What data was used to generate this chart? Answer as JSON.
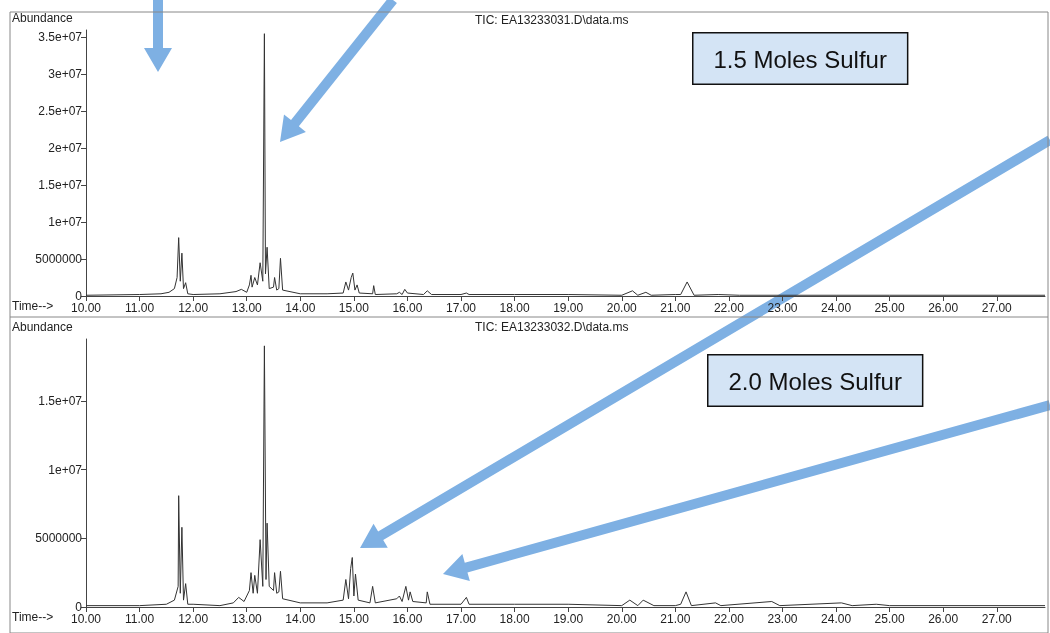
{
  "chart_data": [
    {
      "type": "line",
      "title": "TIC: EA13233031.D\\data.ms",
      "xlabel": "Time-->",
      "ylabel": "Abundance",
      "annotations": [
        "1.5 Moles Sulfur"
      ],
      "marker": "none",
      "line_style": "solid",
      "x": [
        10.0,
        11.0,
        11.4,
        11.55,
        11.65,
        11.7,
        11.73,
        11.76,
        11.79,
        11.82,
        11.86,
        11.9,
        12.0,
        12.5,
        12.8,
        12.9,
        13.0,
        13.05,
        13.08,
        13.1,
        13.15,
        13.2,
        13.25,
        13.3,
        13.33,
        13.35,
        13.38,
        13.42,
        13.5,
        13.52,
        13.56,
        13.6,
        13.63,
        13.67,
        14.0,
        14.5,
        14.8,
        14.85,
        14.9,
        14.95,
        14.98,
        15.02,
        15.06,
        15.1,
        15.35,
        15.37,
        15.4,
        15.8,
        15.85,
        15.9,
        15.95,
        16.0,
        16.3,
        16.37,
        16.45,
        17.0,
        17.1,
        17.15,
        18.0,
        19.0,
        20.0,
        20.2,
        20.3,
        20.45,
        20.55,
        21.0,
        21.1,
        21.22,
        21.35,
        21.8,
        22.2,
        24.0,
        25.0,
        27.9
      ],
      "series": [
        {
          "color": "#333333",
          "values": [
            100000,
            200000,
            300000,
            500000,
            1000000,
            2500000,
            7900000,
            2000000,
            5800000,
            1000000,
            1800000,
            300000,
            200000,
            300000,
            600000,
            900000,
            500000,
            1500000,
            2800000,
            1200000,
            2500000,
            1500000,
            4500000,
            2000000,
            35500000,
            3000000,
            6600000,
            1000000,
            1200000,
            2500000,
            800000,
            1000000,
            5100000,
            800000,
            300000,
            300000,
            400000,
            1900000,
            800000,
            2500000,
            3100000,
            800000,
            1500000,
            400000,
            300000,
            1400000,
            200000,
            300000,
            500000,
            200000,
            900000,
            400000,
            200000,
            700000,
            200000,
            200000,
            400000,
            200000,
            200000,
            200000,
            100000,
            700000,
            100000,
            500000,
            100000,
            200000,
            200000,
            1900000,
            100000,
            200000,
            100000,
            100000,
            100000,
            100000
          ]
        }
      ],
      "xlim": [
        10,
        27.9
      ],
      "xticks": [
        {
          "value": 10,
          "label": "10.00"
        },
        {
          "value": 11,
          "label": "11.00"
        },
        {
          "value": 12,
          "label": "12.00"
        },
        {
          "value": 13,
          "label": "13.00"
        },
        {
          "value": 14,
          "label": "14.00"
        },
        {
          "value": 15,
          "label": "15.00"
        },
        {
          "value": 16,
          "label": "16.00"
        },
        {
          "value": 17,
          "label": "17.00"
        },
        {
          "value": 18,
          "label": "18.00"
        },
        {
          "value": 19,
          "label": "19.00"
        },
        {
          "value": 20,
          "label": "20.00"
        },
        {
          "value": 21,
          "label": "21.00"
        },
        {
          "value": 22,
          "label": "22.00"
        },
        {
          "value": 23,
          "label": "23.00"
        },
        {
          "value": 24,
          "label": "24.00"
        },
        {
          "value": 25,
          "label": "25.00"
        },
        {
          "value": 26,
          "label": "26.00"
        },
        {
          "value": 27,
          "label": "27.00"
        }
      ],
      "ylim": [
        0,
        36000000
      ],
      "yticks": [
        {
          "value": 0,
          "label": "0"
        },
        {
          "value": 5000000,
          "label": "5000000"
        },
        {
          "value": 10000000,
          "label": "1e+07"
        },
        {
          "value": 15000000,
          "label": "1.5e+07"
        },
        {
          "value": 20000000,
          "label": "2e+07"
        },
        {
          "value": 25000000,
          "label": "2.5e+07"
        },
        {
          "value": 30000000,
          "label": "3e+07"
        },
        {
          "value": 35000000,
          "label": "3.5e+07"
        }
      ]
    },
    {
      "type": "line",
      "title": "TIC: EA13233032.D\\data.ms",
      "xlabel": "Time-->",
      "ylabel": "Abundance",
      "annotations": [
        "2.0 Moles Sulfur"
      ],
      "marker": "none",
      "line_style": "solid",
      "x": [
        10.0,
        11.0,
        11.5,
        11.65,
        11.72,
        11.73,
        11.76,
        11.79,
        11.82,
        11.86,
        11.9,
        12.0,
        12.5,
        12.75,
        12.85,
        12.95,
        13.05,
        13.08,
        13.12,
        13.15,
        13.2,
        13.25,
        13.3,
        13.33,
        13.36,
        13.38,
        13.42,
        13.5,
        13.52,
        13.56,
        13.6,
        13.63,
        13.67,
        14.0,
        14.5,
        14.8,
        14.85,
        14.9,
        14.94,
        14.97,
        15.0,
        15.03,
        15.08,
        15.3,
        15.35,
        15.4,
        15.8,
        15.85,
        15.9,
        15.97,
        16.02,
        16.05,
        16.1,
        16.35,
        16.37,
        16.42,
        17.0,
        17.1,
        17.15,
        18.0,
        19.0,
        20.0,
        20.15,
        20.3,
        20.4,
        20.6,
        21.0,
        21.1,
        21.2,
        21.3,
        21.75,
        21.85,
        22.8,
        22.95,
        24.1,
        24.3,
        24.75,
        25.0,
        27.9
      ],
      "series": [
        {
          "color": "#333333",
          "values": [
            100000,
            100000,
            200000,
            500000,
            1500000,
            8100000,
            1000000,
            5800000,
            500000,
            1700000,
            200000,
            200000,
            100000,
            300000,
            700000,
            400000,
            1200000,
            2500000,
            1000000,
            2300000,
            1000000,
            4900000,
            1500000,
            19000000,
            2000000,
            6100000,
            1500000,
            1200000,
            2500000,
            1000000,
            1100000,
            2600000,
            600000,
            300000,
            300000,
            500000,
            2000000,
            600000,
            2800000,
            3600000,
            800000,
            2400000,
            500000,
            300000,
            1500000,
            300000,
            600000,
            800000,
            400000,
            1500000,
            500000,
            1100000,
            400000,
            300000,
            1100000,
            200000,
            200000,
            700000,
            200000,
            200000,
            200000,
            100000,
            500000,
            100000,
            500000,
            100000,
            100000,
            200000,
            1100000,
            100000,
            300000,
            100000,
            400000,
            100000,
            300000,
            100000,
            200000,
            100000,
            100000
          ]
        }
      ],
      "xlim": [
        10,
        27.9
      ],
      "xticks": [
        {
          "value": 10,
          "label": "10.00"
        },
        {
          "value": 11,
          "label": "11.00"
        },
        {
          "value": 12,
          "label": "12.00"
        },
        {
          "value": 13,
          "label": "13.00"
        },
        {
          "value": 14,
          "label": "14.00"
        },
        {
          "value": 15,
          "label": "15.00"
        },
        {
          "value": 16,
          "label": "16.00"
        },
        {
          "value": 17,
          "label": "17.00"
        },
        {
          "value": 18,
          "label": "18.00"
        },
        {
          "value": 19,
          "label": "19.00"
        },
        {
          "value": 20,
          "label": "20.00"
        },
        {
          "value": 21,
          "label": "21.00"
        },
        {
          "value": 22,
          "label": "22.00"
        },
        {
          "value": 23,
          "label": "23.00"
        },
        {
          "value": 24,
          "label": "24.00"
        },
        {
          "value": 25,
          "label": "25.00"
        },
        {
          "value": 26,
          "label": "26.00"
        },
        {
          "value": 27,
          "label": "27.00"
        }
      ],
      "ylim": [
        0,
        19500000
      ],
      "yticks": [
        {
          "value": 0,
          "label": "0"
        },
        {
          "value": 5000000,
          "label": "5000000"
        },
        {
          "value": 10000000,
          "label": "1e+07"
        },
        {
          "value": 15000000,
          "label": "1.5e+07"
        }
      ]
    }
  ]
}
